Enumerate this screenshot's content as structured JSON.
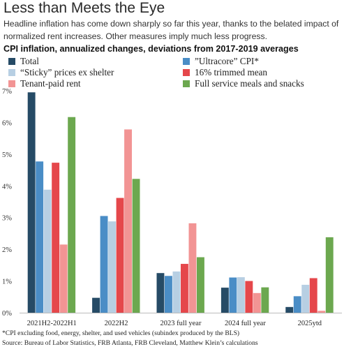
{
  "header": {
    "title": "Less than Meets the Eye",
    "subtitle": "Headline inflation has come down sharply so far this year, thanks to the belated impact of normalized rent increases. Other measures imply much less progress."
  },
  "chart_data": {
    "type": "bar",
    "title": "CPI inflation, annualized changes, deviations from 2017-2019 averages",
    "xlabel": "",
    "ylabel": "",
    "ylim": [
      0,
      7
    ],
    "yticks": [
      "0%",
      "1%",
      "2%",
      "3%",
      "4%",
      "5%",
      "6%",
      "7%"
    ],
    "grid": false,
    "legend_placement": "top",
    "categories": [
      "2021H2-2022H1",
      "2022H2",
      "2023 full year",
      "2024 full year",
      "2025ytd"
    ],
    "series": [
      {
        "name": "Total",
        "color": "#264b66",
        "values": [
          6.95,
          0.47,
          1.25,
          0.79,
          0.18
        ]
      },
      {
        "name": "“Sticky” prices ex shelter",
        "color": "#b7cfe3",
        "values": [
          3.88,
          2.88,
          1.3,
          1.12,
          0.88
        ]
      },
      {
        "name": "Tenant-paid rent",
        "color": "#f29494",
        "values": [
          2.15,
          5.78,
          2.82,
          0.62,
          0.06
        ]
      },
      {
        "name": "”Ultracore” CPI*",
        "color": "#4a8dc6",
        "values": [
          4.77,
          3.05,
          1.16,
          1.11,
          0.52
        ]
      },
      {
        "name": "16% trimmed mean",
        "color": "#e5474b",
        "values": [
          4.73,
          3.62,
          1.54,
          1.0,
          1.09
        ]
      },
      {
        "name": "Full service meals and snacks",
        "color": "#6ca84f",
        "values": [
          6.17,
          4.22,
          1.75,
          0.8,
          2.38
        ]
      }
    ],
    "bar_order": [
      0,
      3,
      1,
      4,
      2,
      5
    ]
  },
  "footnotes": {
    "note": "*CPI excluding food, energy, shelter, and used vehicles (subindex produced by the BLS)",
    "source": "Source: Bureau of Labor Statistics, FRB Atlanta, FRB Cleveland, Matthew Klein’s calculations"
  }
}
